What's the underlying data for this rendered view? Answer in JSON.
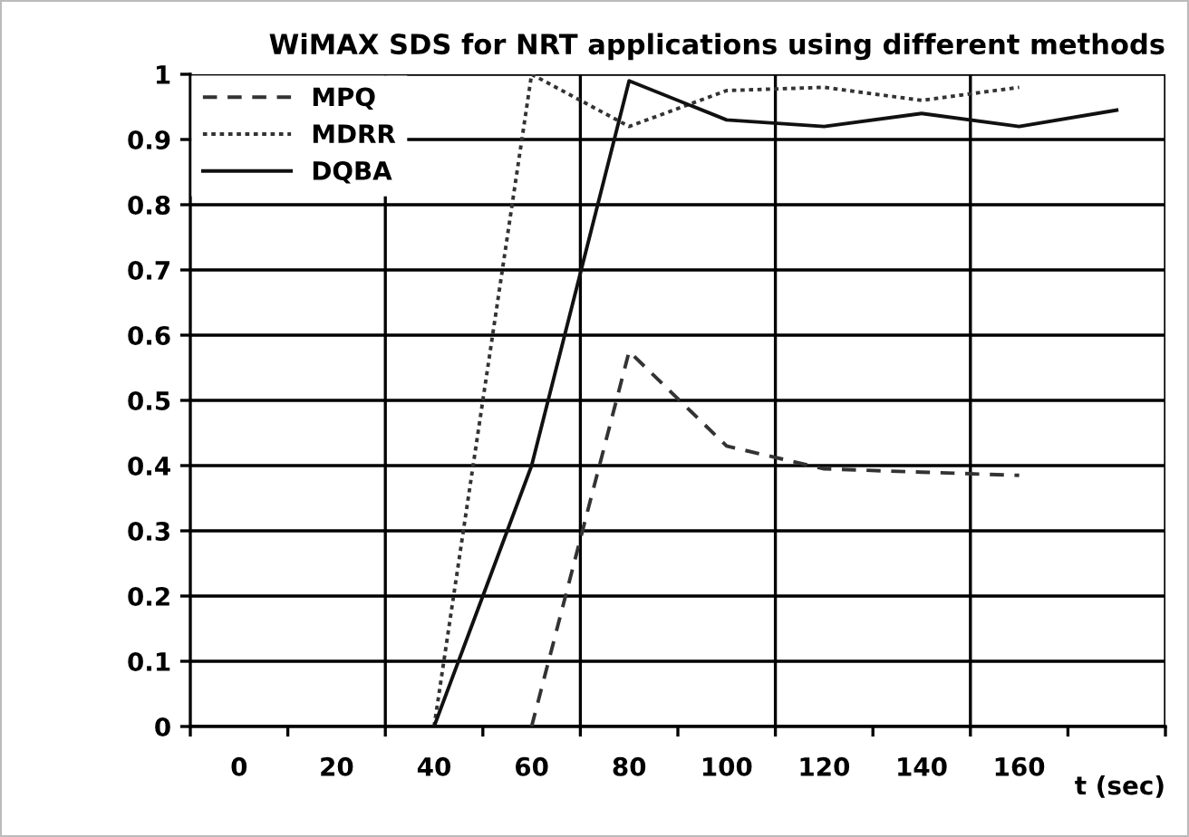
{
  "chart_data": {
    "type": "line",
    "title": "WiMAX SDS for NRT applications using different methods",
    "xlabel": "t (sec)",
    "categories": [
      "0",
      "20",
      "40",
      "60",
      "80",
      "100",
      "120",
      "140",
      "160",
      null
    ],
    "series": [
      {
        "name": "MPQ",
        "color": "#333333",
        "line_style": "dashed",
        "values": [
          null,
          null,
          null,
          0,
          0.575,
          0.43,
          0.395,
          0.39,
          0.385,
          null
        ]
      },
      {
        "name": "MDRR",
        "color": "#333333",
        "line_style": "dotted",
        "values": [
          null,
          null,
          0,
          1.0,
          0.92,
          0.975,
          0.98,
          0.96,
          0.98,
          null
        ]
      },
      {
        "name": "DQBA",
        "color": "#111111",
        "line_style": "solid",
        "values": [
          null,
          null,
          0,
          0.4,
          0.99,
          0.93,
          0.92,
          0.94,
          0.92,
          0.945
        ]
      }
    ],
    "ylim": [
      0,
      1
    ],
    "yticks": [
      0,
      0.1,
      0.2,
      0.3,
      0.4,
      0.5,
      0.6,
      0.7,
      0.8,
      0.9,
      1
    ],
    "grid": true,
    "legend": "top left",
    "marker": "none"
  }
}
